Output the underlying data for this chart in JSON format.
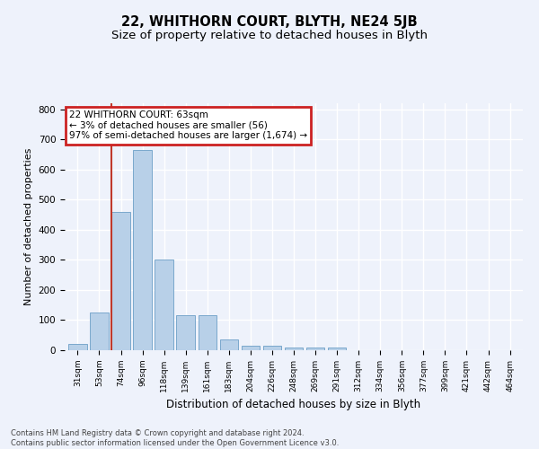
{
  "title": "22, WHITHORN COURT, BLYTH, NE24 5JB",
  "subtitle": "Size of property relative to detached houses in Blyth",
  "xlabel": "Distribution of detached houses by size in Blyth",
  "ylabel": "Number of detached properties",
  "footnote1": "Contains HM Land Registry data © Crown copyright and database right 2024.",
  "footnote2": "Contains public sector information licensed under the Open Government Licence v3.0.",
  "bar_labels": [
    "31sqm",
    "53sqm",
    "74sqm",
    "96sqm",
    "118sqm",
    "139sqm",
    "161sqm",
    "183sqm",
    "204sqm",
    "226sqm",
    "248sqm",
    "269sqm",
    "291sqm",
    "312sqm",
    "334sqm",
    "356sqm",
    "377sqm",
    "399sqm",
    "421sqm",
    "442sqm",
    "464sqm"
  ],
  "bar_values": [
    20,
    125,
    460,
    665,
    302,
    117,
    117,
    35,
    15,
    15,
    10,
    10,
    10,
    0,
    0,
    0,
    0,
    0,
    0,
    0,
    0
  ],
  "bar_color": "#b8d0e8",
  "bar_edge_color": "#7aa8cc",
  "vline_x_index": 1.55,
  "vline_color": "#c0392b",
  "annotation_text": "22 WHITHORN COURT: 63sqm\n← 3% of detached houses are smaller (56)\n97% of semi-detached houses are larger (1,674) →",
  "annotation_box_color": "#cc2222",
  "ylim": [
    0,
    820
  ],
  "yticks": [
    0,
    100,
    200,
    300,
    400,
    500,
    600,
    700,
    800
  ],
  "background_color": "#eef2fb",
  "grid_color": "#ffffff",
  "title_fontsize": 10.5,
  "subtitle_fontsize": 9.5,
  "ylabel_fontsize": 8,
  "xlabel_fontsize": 8.5
}
